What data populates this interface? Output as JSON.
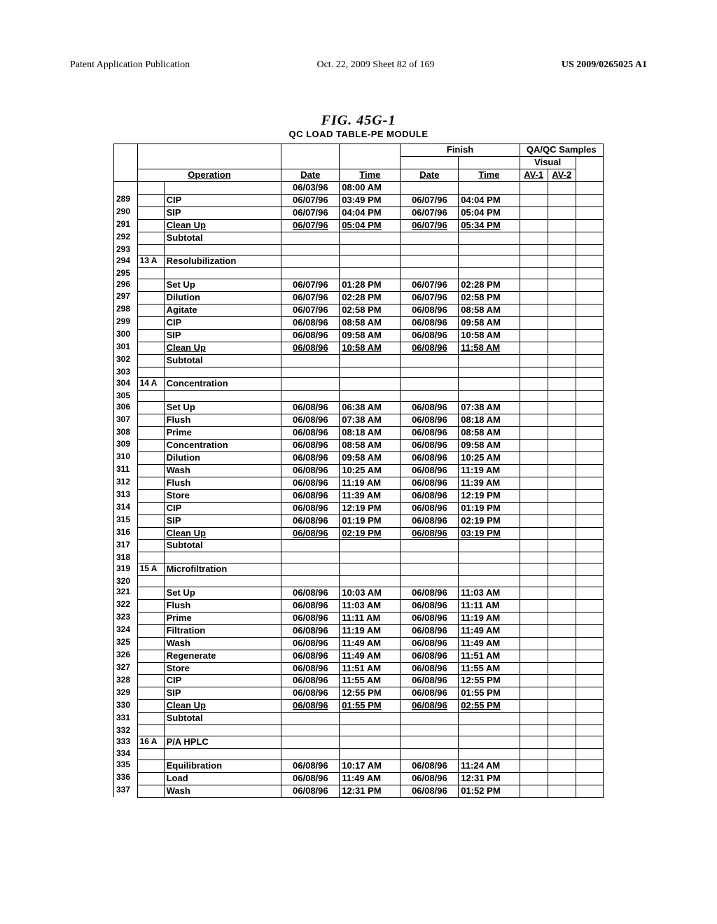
{
  "header": {
    "left": "Patent Application Publication",
    "center": "Oct. 22, 2009  Sheet 82 of 169",
    "right": "US 2009/0265025 A1"
  },
  "figure": {
    "title": "FIG. 45G-1",
    "subtitle": "QC LOAD TABLE-PE MODULE"
  },
  "table": {
    "top_headers": {
      "operation": "Operation",
      "date1": "Date",
      "time1": "Time",
      "finish": "Finish",
      "date2": "Date",
      "time2": "Time",
      "samples": "QA/QC Samples",
      "visual": "Visual",
      "av1": "AV-1",
      "av2": "AV-2"
    },
    "initial": {
      "date": "06/03/96",
      "time": "08:00 AM"
    },
    "sections": [
      {
        "rows": [
          {
            "n": "289",
            "op": "CIP",
            "d1": "06/07/96",
            "t1": "03:49 PM",
            "d2": "06/07/96",
            "t2": "04:04 PM"
          },
          {
            "n": "290",
            "op": "SIP",
            "d1": "06/07/96",
            "t1": "04:04 PM",
            "d2": "06/07/96",
            "t2": "05:04 PM"
          },
          {
            "n": "291",
            "op": "Clean Up",
            "ul": true,
            "d1": "06/07/96",
            "t1": "05:04 PM",
            "d2": "06/07/96",
            "t2": "05:34 PM"
          }
        ],
        "subtotal_n": "292",
        "blank_n": "293"
      },
      {
        "header_n": "294",
        "group": "13 A",
        "title": "Resolubilization",
        "blank_after_header": "295",
        "rows": [
          {
            "n": "296",
            "op": "Set Up",
            "d1": "06/07/96",
            "t1": "01:28 PM",
            "d2": "06/07/96",
            "t2": "02:28 PM"
          },
          {
            "n": "297",
            "op": "Dilution",
            "d1": "06/07/96",
            "t1": "02:28 PM",
            "d2": "06/07/96",
            "t2": "02:58 PM"
          },
          {
            "n": "298",
            "op": "Agitate",
            "d1": "06/07/96",
            "t1": "02:58 PM",
            "d2": "06/08/96",
            "t2": "08:58 AM"
          },
          {
            "n": "299",
            "op": "CIP",
            "d1": "06/08/96",
            "t1": "08:58 AM",
            "d2": "06/08/96",
            "t2": "09:58 AM"
          },
          {
            "n": "300",
            "op": "SIP",
            "d1": "06/08/96",
            "t1": "09:58 AM",
            "d2": "06/08/96",
            "t2": "10:58 AM"
          },
          {
            "n": "301",
            "op": "Clean Up",
            "ul": true,
            "d1": "06/08/96",
            "t1": "10:58 AM",
            "d2": "06/08/96",
            "t2": "11:58 AM"
          }
        ],
        "subtotal_n": "302",
        "blank_n": "303"
      },
      {
        "header_n": "304",
        "group": "14 A",
        "title": "Concentration",
        "blank_after_header": "305",
        "rows": [
          {
            "n": "306",
            "op": "Set Up",
            "d1": "06/08/96",
            "t1": "06:38 AM",
            "d2": "06/08/96",
            "t2": "07:38 AM"
          },
          {
            "n": "307",
            "op": "Flush",
            "d1": "06/08/96",
            "t1": "07:38 AM",
            "d2": "06/08/96",
            "t2": "08:18 AM"
          },
          {
            "n": "308",
            "op": "Prime",
            "d1": "06/08/96",
            "t1": "08:18 AM",
            "d2": "06/08/96",
            "t2": "08:58 AM"
          },
          {
            "n": "309",
            "op": "Concentration",
            "d1": "06/08/96",
            "t1": "08:58 AM",
            "d2": "06/08/96",
            "t2": "09:58 AM"
          },
          {
            "n": "310",
            "op": "Dilution",
            "d1": "06/08/96",
            "t1": "09:58 AM",
            "d2": "06/08/96",
            "t2": "10:25 AM"
          },
          {
            "n": "311",
            "op": "Wash",
            "d1": "06/08/96",
            "t1": "10:25 AM",
            "d2": "06/08/96",
            "t2": "11:19 AM"
          },
          {
            "n": "312",
            "op": "Flush",
            "d1": "06/08/96",
            "t1": "11:19 AM",
            "d2": "06/08/96",
            "t2": "11:39 AM"
          },
          {
            "n": "313",
            "op": "Store",
            "d1": "06/08/96",
            "t1": "11:39 AM",
            "d2": "06/08/96",
            "t2": "12:19 PM"
          },
          {
            "n": "314",
            "op": "CIP",
            "d1": "06/08/96",
            "t1": "12:19 PM",
            "d2": "06/08/96",
            "t2": "01:19 PM"
          },
          {
            "n": "315",
            "op": "SIP",
            "d1": "06/08/96",
            "t1": "01:19 PM",
            "d2": "06/08/96",
            "t2": "02:19 PM"
          },
          {
            "n": "316",
            "op": "Clean Up",
            "ul": true,
            "d1": "06/08/96",
            "t1": "02:19 PM",
            "d2": "06/08/96",
            "t2": "03:19 PM"
          }
        ],
        "subtotal_n": "317",
        "blank_n": "318"
      },
      {
        "header_n": "319",
        "group": "15 A",
        "title": "Microfiltration",
        "blank_after_header": "320",
        "rows": [
          {
            "n": "321",
            "op": "Set Up",
            "d1": "06/08/96",
            "t1": "10:03 AM",
            "d2": "06/08/96",
            "t2": "11:03 AM"
          },
          {
            "n": "322",
            "op": "Flush",
            "d1": "06/08/96",
            "t1": "11:03 AM",
            "d2": "06/08/96",
            "t2": "11:11 AM"
          },
          {
            "n": "323",
            "op": "Prime",
            "d1": "06/08/96",
            "t1": "11:11 AM",
            "d2": "06/08/96",
            "t2": "11:19 AM"
          },
          {
            "n": "324",
            "op": "Filtration",
            "d1": "06/08/96",
            "t1": "11:19 AM",
            "d2": "06/08/96",
            "t2": "11:49 AM"
          },
          {
            "n": "325",
            "op": "Wash",
            "d1": "06/08/96",
            "t1": "11:49 AM",
            "d2": "06/08/96",
            "t2": "11:49 AM"
          },
          {
            "n": "326",
            "op": "Regenerate",
            "d1": "06/08/96",
            "t1": "11:49 AM",
            "d2": "06/08/96",
            "t2": "11:51 AM"
          },
          {
            "n": "327",
            "op": "Store",
            "d1": "06/08/96",
            "t1": "11:51 AM",
            "d2": "06/08/96",
            "t2": "11:55 AM"
          },
          {
            "n": "328",
            "op": "CIP",
            "d1": "06/08/96",
            "t1": "11:55 AM",
            "d2": "06/08/96",
            "t2": "12:55 PM"
          },
          {
            "n": "329",
            "op": "SIP",
            "d1": "06/08/96",
            "t1": "12:55 PM",
            "d2": "06/08/96",
            "t2": "01:55 PM"
          },
          {
            "n": "330",
            "op": "Clean Up",
            "ul": true,
            "d1": "06/08/96",
            "t1": "01:55 PM",
            "d2": "06/08/96",
            "t2": "02:55 PM"
          }
        ],
        "subtotal_n": "331",
        "blank_n": "332"
      },
      {
        "header_n": "333",
        "group": "16 A",
        "title": "P/A HPLC",
        "blank_after_header": "334",
        "rows": [
          {
            "n": "335",
            "op": "Equilibration",
            "d1": "06/08/96",
            "t1": "10:17 AM",
            "d2": "06/08/96",
            "t2": "11:24 AM"
          },
          {
            "n": "336",
            "op": "Load",
            "d1": "06/08/96",
            "t1": "11:49 AM",
            "d2": "06/08/96",
            "t2": "12:31 PM"
          },
          {
            "n": "337",
            "op": "Wash",
            "d1": "06/08/96",
            "t1": "12:31 PM",
            "d2": "06/08/96",
            "t2": "01:52 PM"
          }
        ]
      }
    ],
    "subtotal_label": "Subtotal"
  }
}
